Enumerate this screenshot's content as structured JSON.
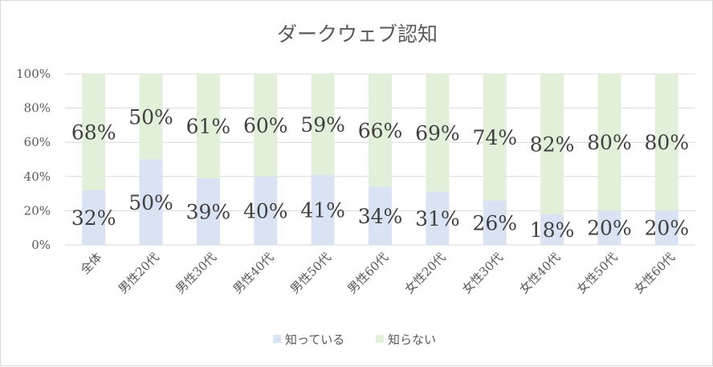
{
  "chart_data": {
    "type": "bar",
    "stacked": true,
    "percent_stacked": true,
    "title": "ダークウェブ認知",
    "categories": [
      "全体",
      "男性20代",
      "男性30代",
      "男性40代",
      "男性50代",
      "男性60代",
      "女性20代",
      "女性30代",
      "女性40代",
      "女性50代",
      "女性60代"
    ],
    "series": [
      {
        "name": "知っている",
        "color": "#dae3f3",
        "values": [
          32,
          50,
          39,
          40,
          41,
          34,
          31,
          26,
          18,
          20,
          20
        ],
        "labels": [
          "32%",
          "50%",
          "39%",
          "40%",
          "41%",
          "34%",
          "31%",
          "26%",
          "18%",
          "20%",
          "20%"
        ]
      },
      {
        "name": "知らない",
        "color": "#e2f0d9",
        "values": [
          68,
          50,
          61,
          60,
          59,
          66,
          69,
          74,
          82,
          80,
          80
        ],
        "labels": [
          "68%",
          "50%",
          "61%",
          "60%",
          "59%",
          "66%",
          "69%",
          "74%",
          "82%",
          "80%",
          "80%"
        ]
      }
    ],
    "ylim": [
      0,
      100
    ],
    "yticks": [
      "0%",
      "20%",
      "40%",
      "60%",
      "80%",
      "100%"
    ],
    "grid": true,
    "legend_position": "bottom"
  }
}
